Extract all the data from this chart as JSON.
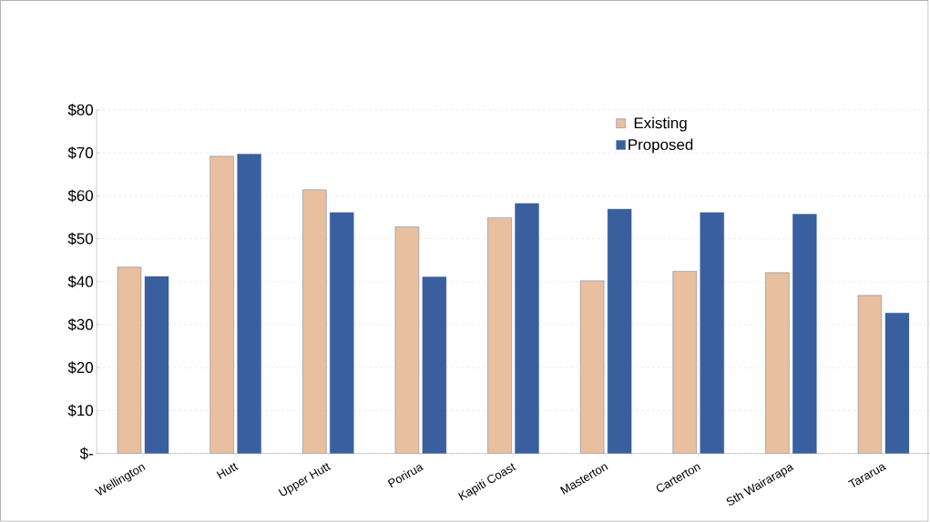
{
  "chart_data": {
    "type": "bar",
    "categories": [
      "Wellington",
      "Hutt",
      "Upper Hutt",
      "Porirua",
      "Kapiti Coast",
      "Masterton",
      "Carterton",
      "Sth Wairarapa",
      "Tararua"
    ],
    "series": [
      {
        "name": "Existing",
        "color": "#e8c0a0",
        "values": [
          43.4,
          69.2,
          61.4,
          52.8,
          54.9,
          40.2,
          42.4,
          42.1,
          36.8
        ]
      },
      {
        "name": "Proposed",
        "color": "#3a5f9f",
        "values": [
          41.2,
          69.7,
          56.1,
          41.1,
          58.2,
          56.9,
          56.1,
          55.7,
          32.7
        ]
      }
    ],
    "ylim": [
      0,
      80
    ],
    "yticks": [
      {
        "value": 0,
        "label": "$-"
      },
      {
        "value": 10,
        "label": "$10"
      },
      {
        "value": 20,
        "label": "$20"
      },
      {
        "value": 30,
        "label": "$30"
      },
      {
        "value": 40,
        "label": "$40"
      },
      {
        "value": 50,
        "label": "$50"
      },
      {
        "value": 60,
        "label": "$60"
      },
      {
        "value": 70,
        "label": "$70"
      },
      {
        "value": 80,
        "label": "$80"
      }
    ],
    "grid": "y",
    "legend": "top right"
  }
}
